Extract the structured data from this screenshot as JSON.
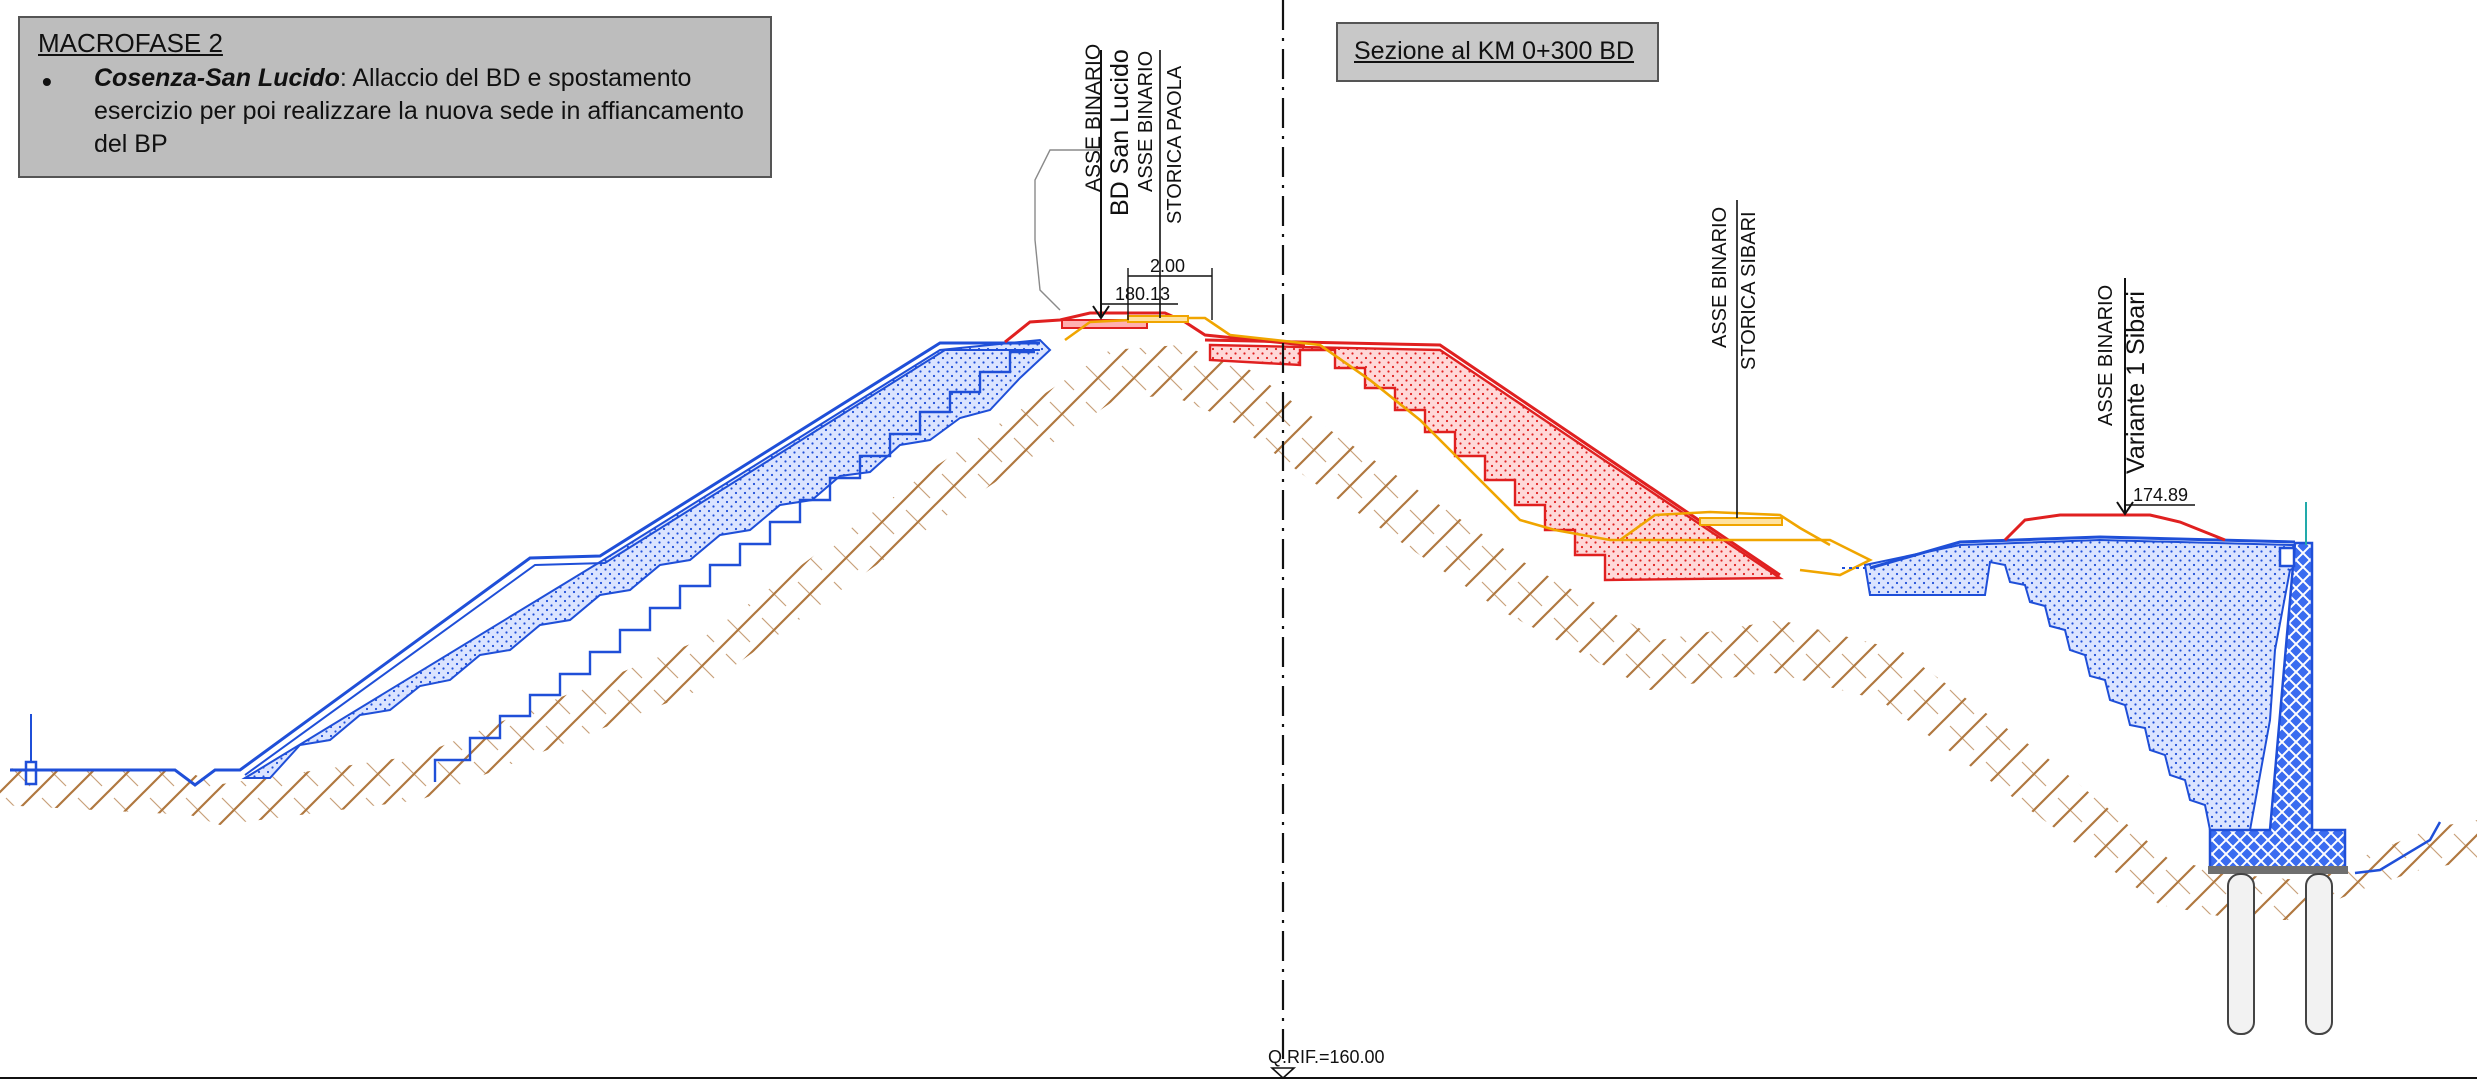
{
  "phase_box": {
    "title": "MACROFASE 2",
    "bullet": "•",
    "bold_text": "Cosenza-San Lucido",
    "rest_text": ": Allaccio del BD e spostamento esercizio per poi realizzare la nuova sede in affiancamento del BP"
  },
  "section_box": {
    "title": "Sezione al KM 0+300 BD"
  },
  "track_labels": {
    "bd_line1": "ASSE BINARIO",
    "bd_line2": "BD San Lucido",
    "paola_line1": "ASSE BINARIO",
    "paola_line2": "STORICA PAOLA",
    "sibari_line1": "ASSE BINARIO",
    "sibari_line2": "STORICA SIBARI",
    "variante_line1": "ASSE BINARIO",
    "variante_line2": "Variante 1 Sibari"
  },
  "dimensions": {
    "width": "2.00",
    "elev_bd": "180.13",
    "elev_variante": "174.89",
    "reference": "Q.RIF.=160.00"
  },
  "colors": {
    "existing_embankment": "#1f4fd8",
    "new_embankment": "#e02020",
    "historic_line": "#f0a500",
    "ground_hatch": "#b07840",
    "axis": "#111111"
  }
}
